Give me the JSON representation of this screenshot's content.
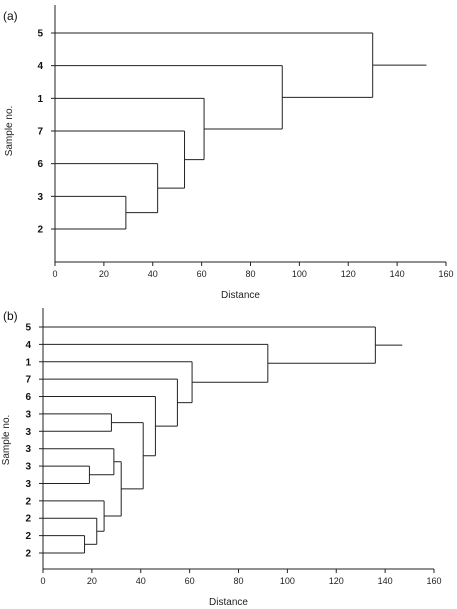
{
  "chart_data": [
    {
      "type": "dendrogram",
      "panel": "(a)",
      "xlabel": "Distance",
      "ylabel": "Sample no.",
      "xlim": [
        0,
        160
      ],
      "xticks": [
        0,
        20,
        40,
        60,
        80,
        100,
        120,
        140,
        160
      ],
      "leaves": [
        "5",
        "4",
        "1",
        "7",
        "6",
        "3",
        "2"
      ],
      "merges": [
        {
          "a": "L6",
          "b": "L5",
          "height": 29
        },
        {
          "a": "C0",
          "b": "L4",
          "height": 42
        },
        {
          "a": "C1",
          "b": "L3",
          "height": 53
        },
        {
          "a": "C2",
          "b": "L2",
          "height": 61
        },
        {
          "a": "L1",
          "b": "C3",
          "height": 93
        },
        {
          "a": "L0",
          "b": "C4",
          "height": 130
        }
      ],
      "root_tail": 152
    },
    {
      "type": "dendrogram",
      "panel": "(b)",
      "xlabel": "Distance",
      "ylabel": "Sample no.",
      "xlim": [
        0,
        160
      ],
      "xticks": [
        0,
        20,
        40,
        60,
        80,
        100,
        120,
        140,
        160
      ],
      "leaves": [
        "5",
        "4",
        "1",
        "7",
        "6",
        "3",
        "3",
        "3",
        "3",
        "3",
        "2",
        "2",
        "2",
        "2"
      ],
      "merges": [
        {
          "a": "L12",
          "b": "L13",
          "height": 17
        },
        {
          "a": "L11",
          "b": "C0",
          "height": 22
        },
        {
          "a": "L10",
          "b": "C1",
          "height": 25
        },
        {
          "a": "L8",
          "b": "L9",
          "height": 19
        },
        {
          "a": "L7",
          "b": "C3",
          "height": 29
        },
        {
          "a": "C4",
          "b": "C2",
          "height": 32
        },
        {
          "a": "L5",
          "b": "L6",
          "height": 28
        },
        {
          "a": "C6",
          "b": "C5",
          "height": 41
        },
        {
          "a": "L4",
          "b": "C7",
          "height": 46
        },
        {
          "a": "L3",
          "b": "C8",
          "height": 55
        },
        {
          "a": "L2",
          "b": "C9",
          "height": 61
        },
        {
          "a": "L1",
          "b": "C10",
          "height": 92
        },
        {
          "a": "L0",
          "b": "C11",
          "height": 136
        }
      ],
      "root_tail": 147
    }
  ]
}
